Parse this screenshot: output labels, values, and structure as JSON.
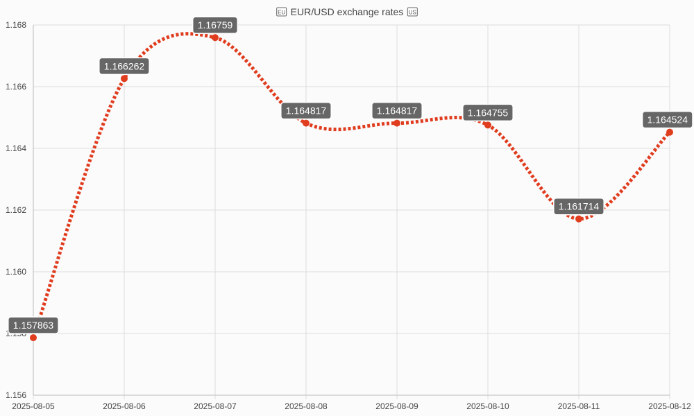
{
  "chart_data": {
    "type": "line",
    "title": "EUR/USD exchange rates",
    "title_icons": [
      "eu-flag-icon",
      "us-flag-icon"
    ],
    "x": [
      "2025-08-05",
      "2025-08-06",
      "2025-08-07",
      "2025-08-08",
      "2025-08-09",
      "2025-08-10",
      "2025-08-11",
      "2025-08-12"
    ],
    "series": [
      {
        "values": [
          1.157863,
          1.166262,
          1.16759,
          1.164817,
          1.164817,
          1.164755,
          1.161714,
          1.164524
        ]
      }
    ],
    "data_labels": [
      "1.157863",
      "1.166262",
      "1.16759",
      "1.164817",
      "1.164817",
      "1.164755",
      "1.161714",
      "1.164524"
    ],
    "ylim": [
      1.156,
      1.168
    ],
    "yticks": [
      "1.156",
      "1.158",
      "1.160",
      "1.162",
      "1.164",
      "1.166",
      "1.168"
    ],
    "grid": true,
    "line_style": "dotted smooth",
    "colors": {
      "line": "#e03c1e",
      "point": "#e03c1e",
      "label_bg": "#666666",
      "label_text": "#ffffff",
      "grid": "#dddddd",
      "axis_text": "#444444"
    }
  }
}
